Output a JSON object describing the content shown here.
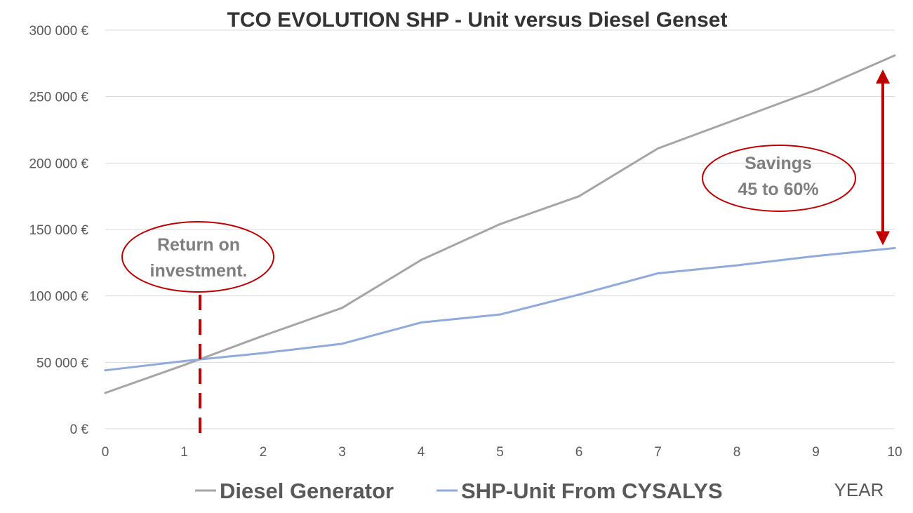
{
  "chart_data": {
    "type": "line",
    "title": "TCO EVOLUTION SHP - Unit versus Diesel Genset",
    "xlabel": "YEAR",
    "ylabel": "",
    "x": [
      0,
      1,
      2,
      3,
      4,
      5,
      6,
      7,
      8,
      9,
      10
    ],
    "xlim": [
      0,
      10
    ],
    "ylim": [
      0,
      300000
    ],
    "yticks": [
      0,
      50000,
      100000,
      150000,
      200000,
      250000,
      300000
    ],
    "ytick_labels": [
      "0 €",
      "50 000 €",
      "100 000 €",
      "150 000 €",
      "200 000 €",
      "250 000 €",
      "300 000 €"
    ],
    "xtick_labels": [
      "0",
      "1",
      "2",
      "3",
      "4",
      "5",
      "6",
      "7",
      "8",
      "9",
      "10"
    ],
    "grid": true,
    "legend_position": "bottom",
    "series": [
      {
        "name": "Diesel Generator",
        "color": "#a5a5a5",
        "values": [
          27000,
          48000,
          70000,
          91000,
          127000,
          154000,
          175000,
          211000,
          233000,
          255000,
          281000
        ]
      },
      {
        "name": "SHP-Unit From CYSALYS",
        "color": "#8faadc",
        "values": [
          44000,
          51000,
          57000,
          64000,
          80000,
          86000,
          101000,
          117000,
          123000,
          130000,
          136000
        ]
      }
    ],
    "annotations": {
      "roi": {
        "line1": "Return on",
        "line2": "investment.",
        "x": 1.2
      },
      "savings": {
        "line1": "Savings",
        "line2": "45 to 60%",
        "x": 10,
        "from": 136000,
        "to": 281000
      }
    },
    "accent_color": "#c00000"
  }
}
